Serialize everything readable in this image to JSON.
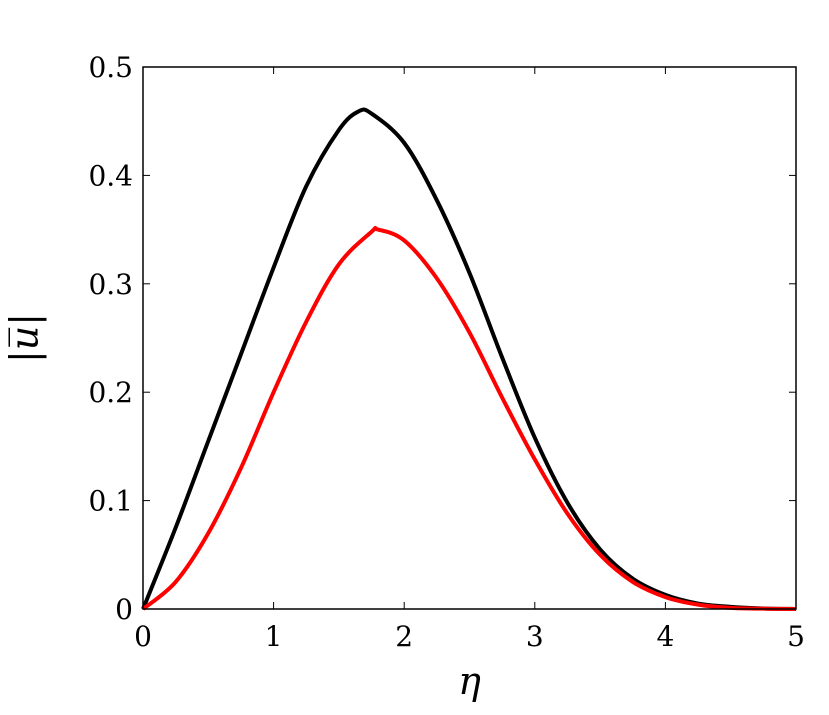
{
  "chart_data": {
    "type": "line",
    "title": "",
    "xlabel": "η",
    "ylabel": "|u̅|",
    "xlim": [
      0,
      5
    ],
    "ylim": [
      0,
      0.5
    ],
    "xticks": [
      "0",
      "1",
      "2",
      "3",
      "4",
      "5"
    ],
    "yticks": [
      "0",
      "0.1",
      "0.2",
      "0.3",
      "0.4",
      "0.5"
    ],
    "grid": false,
    "legend": "none",
    "series": [
      {
        "color": "#000000",
        "x": [
          0,
          0.25,
          0.5,
          0.75,
          1.0,
          1.25,
          1.5,
          1.65,
          1.75,
          2.0,
          2.25,
          2.5,
          2.75,
          3.0,
          3.25,
          3.5,
          3.75,
          4.0,
          4.25,
          4.5,
          4.75,
          5.0
        ],
        "y": [
          0,
          0.075,
          0.155,
          0.235,
          0.315,
          0.39,
          0.442,
          0.459,
          0.457,
          0.43,
          0.377,
          0.31,
          0.232,
          0.158,
          0.098,
          0.055,
          0.028,
          0.013,
          0.005,
          0.002,
          0.0005,
          0
        ]
      },
      {
        "color": "#ff0000",
        "x": [
          0,
          0.25,
          0.5,
          0.75,
          1.0,
          1.25,
          1.5,
          1.75,
          1.8,
          2.0,
          2.25,
          2.5,
          2.75,
          3.0,
          3.25,
          3.5,
          3.75,
          4.0,
          4.25,
          4.5,
          4.75,
          5.0
        ],
        "y": [
          0,
          0.025,
          0.07,
          0.13,
          0.2,
          0.265,
          0.318,
          0.348,
          0.35,
          0.34,
          0.305,
          0.255,
          0.195,
          0.138,
          0.088,
          0.05,
          0.025,
          0.011,
          0.004,
          0.001,
          0.0003,
          0
        ]
      }
    ]
  }
}
